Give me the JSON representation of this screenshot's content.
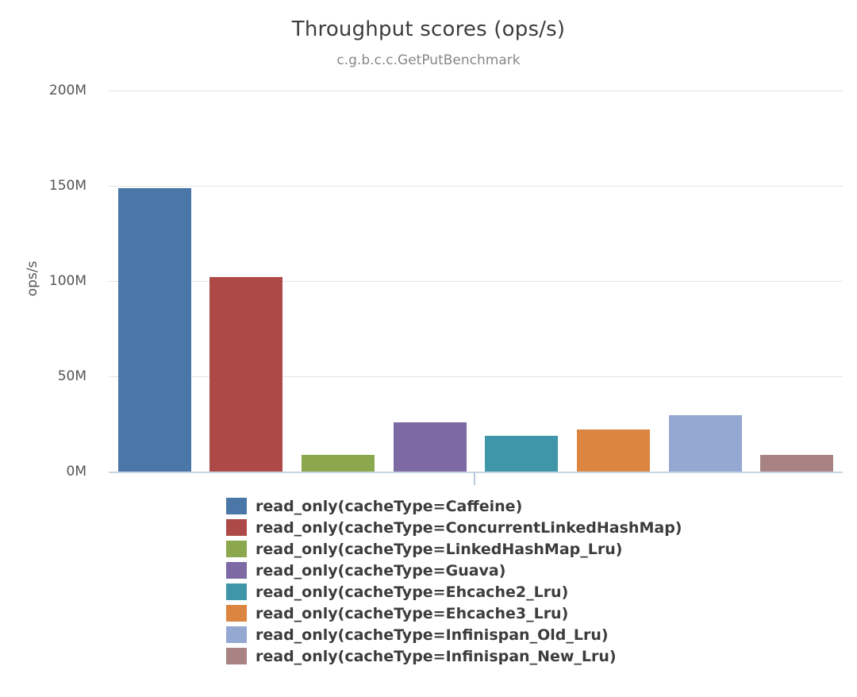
{
  "page": {
    "background_color": "#ffffff"
  },
  "chart_data": {
    "type": "bar",
    "title": "Throughput scores (ops/s)",
    "subtitle": "c.g.b.c.c.GetPutBenchmark",
    "ylabel": "ops/s",
    "xlabel": "",
    "ylim_mops": [
      0,
      200
    ],
    "yticks": [
      {
        "label": "200M",
        "value_mops": 200
      },
      {
        "label": "150M",
        "value_mops": 150
      },
      {
        "label": "100M",
        "value_mops": 100
      },
      {
        "label": "50M",
        "value_mops": 50
      },
      {
        "label": "0M",
        "value_mops": 0
      }
    ],
    "grid": true,
    "legend_position": "bottom",
    "bars": [
      {
        "label": "read_only(cacheType=Caffeine)",
        "short": "caffeine",
        "value_mops": 148.8,
        "value_ops": 148800000,
        "color": "#4a76a8"
      },
      {
        "label": "read_only(cacheType=ConcurrentLinkedHashMap)",
        "short": "concurrentlinkedhashmap",
        "value_mops": 102.1,
        "value_ops": 102100000,
        "color": "#ad4a47"
      },
      {
        "label": "read_only(cacheType=LinkedHashMap_Lru)",
        "short": "linkedhashmap-lru",
        "value_mops": 8.6,
        "value_ops": 8600000,
        "color": "#8ba84e"
      },
      {
        "label": "read_only(cacheType=Guava)",
        "short": "guava",
        "value_mops": 25.7,
        "value_ops": 25700000,
        "color": "#7d69a4"
      },
      {
        "label": "read_only(cacheType=Ehcache2_Lru)",
        "short": "ehcache2-lru",
        "value_mops": 18.9,
        "value_ops": 18900000,
        "color": "#3f96a9"
      },
      {
        "label": "read_only(cacheType=Ehcache3_Lru)",
        "short": "ehcache3-lru",
        "value_mops": 22.0,
        "value_ops": 22000000,
        "color": "#db8541"
      },
      {
        "label": "read_only(cacheType=Infinispan_Old_Lru)",
        "short": "infinispan-old-lru",
        "value_mops": 29.5,
        "value_ops": 29500000,
        "color": "#94a8d1"
      },
      {
        "label": "read_only(cacheType=Infinispan_New_Lru)",
        "short": "infinispan-new-lru",
        "value_mops": 8.6,
        "value_ops": 8600000,
        "color": "#a98384"
      }
    ],
    "colors": {
      "title_text": "#3d3d3d",
      "subtitle_text": "#878787",
      "tick_text": "#555555",
      "legend_text": "#3c3c3c",
      "grid_line": "#e4e4e4",
      "axis_line": "#c9d5e3",
      "x_tick_mark": "#b9c9dd"
    }
  }
}
